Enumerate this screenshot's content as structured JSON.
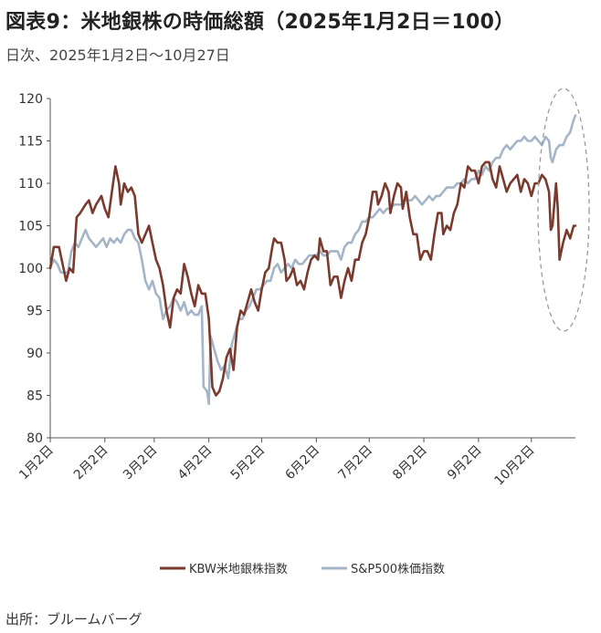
{
  "title": "図表9：米地銀株の時価総額（2025年1月2日＝100）",
  "subtitle": "日次、2025年1月2日～10月27日",
  "source": "出所：ブルームバーグ",
  "chart_data": {
    "type": "line",
    "ylim": [
      80,
      120
    ],
    "yticks": [
      80,
      85,
      90,
      95,
      100,
      105,
      110,
      115,
      120
    ],
    "xlim": [
      0,
      298
    ],
    "xticks": [
      {
        "label": "1月2日",
        "x": 0
      },
      {
        "label": "2月2日",
        "x": 31
      },
      {
        "label": "3月2日",
        "x": 59
      },
      {
        "label": "4月2日",
        "x": 90
      },
      {
        "label": "5月2日",
        "x": 120
      },
      {
        "label": "6月2日",
        "x": 151
      },
      {
        "label": "7月2日",
        "x": 181
      },
      {
        "label": "8月2日",
        "x": 212
      },
      {
        "label": "9月2日",
        "x": 243
      },
      {
        "label": "10月2日",
        "x": 273
      }
    ],
    "annotation": "dashed-ellipse-highlight",
    "legend_position": "bottom",
    "series": [
      {
        "name": "KBW米地銀株指数",
        "color": "#7B3A2E",
        "points": [
          [
            0,
            100
          ],
          [
            2,
            102.5
          ],
          [
            5,
            102.5
          ],
          [
            7,
            100.5
          ],
          [
            9,
            98.5
          ],
          [
            11,
            100
          ],
          [
            13,
            99.5
          ],
          [
            15,
            106
          ],
          [
            17,
            106.5
          ],
          [
            20,
            107.5
          ],
          [
            22,
            108
          ],
          [
            24,
            106.5
          ],
          [
            26,
            107.5
          ],
          [
            29,
            108.5
          ],
          [
            31,
            107
          ],
          [
            33,
            106
          ],
          [
            35,
            109
          ],
          [
            37,
            112
          ],
          [
            39,
            110
          ],
          [
            40,
            107.5
          ],
          [
            42,
            110
          ],
          [
            44,
            109
          ],
          [
            46,
            109.5
          ],
          [
            48,
            108.5
          ],
          [
            50,
            104
          ],
          [
            52,
            103
          ],
          [
            54,
            104
          ],
          [
            56,
            105
          ],
          [
            58,
            103
          ],
          [
            60,
            101
          ],
          [
            62,
            100
          ],
          [
            64,
            98
          ],
          [
            66,
            95
          ],
          [
            68,
            93
          ],
          [
            70,
            96.5
          ],
          [
            72,
            97.5
          ],
          [
            74,
            97
          ],
          [
            76,
            100.5
          ],
          [
            78,
            99
          ],
          [
            80,
            97
          ],
          [
            82,
            95.5
          ],
          [
            84,
            98
          ],
          [
            86,
            97
          ],
          [
            88,
            97
          ],
          [
            90,
            94
          ],
          [
            92,
            86
          ],
          [
            94,
            85
          ],
          [
            96,
            85.5
          ],
          [
            98,
            87
          ],
          [
            100,
            89.5
          ],
          [
            102,
            90.5
          ],
          [
            104,
            88
          ],
          [
            106,
            93
          ],
          [
            108,
            95
          ],
          [
            110,
            94.5
          ],
          [
            112,
            96
          ],
          [
            114,
            97.5
          ],
          [
            116,
            96
          ],
          [
            118,
            95
          ],
          [
            120,
            97.5
          ],
          [
            122,
            99.5
          ],
          [
            124,
            100
          ],
          [
            126,
            102.5
          ],
          [
            127,
            103.5
          ],
          [
            129,
            103
          ],
          [
            131,
            103
          ],
          [
            133,
            101
          ],
          [
            134,
            98.5
          ],
          [
            136,
            99
          ],
          [
            138,
            100
          ],
          [
            140,
            98
          ],
          [
            142,
            98.5
          ],
          [
            144,
            97.5
          ],
          [
            146,
            99.5
          ],
          [
            148,
            101
          ],
          [
            150,
            101.5
          ],
          [
            152,
            101
          ],
          [
            153,
            103.5
          ],
          [
            155,
            102
          ],
          [
            157,
            102
          ],
          [
            159,
            98
          ],
          [
            161,
            99
          ],
          [
            163,
            99
          ],
          [
            165,
            96.5
          ],
          [
            167,
            98.5
          ],
          [
            169,
            100
          ],
          [
            171,
            98.5
          ],
          [
            173,
            101
          ],
          [
            175,
            101
          ],
          [
            177,
            103
          ],
          [
            179,
            104
          ],
          [
            181,
            106
          ],
          [
            183,
            109
          ],
          [
            185,
            109
          ],
          [
            186,
            107.5
          ],
          [
            188,
            108.5
          ],
          [
            190,
            110
          ],
          [
            192,
            109
          ],
          [
            193,
            106.5
          ],
          [
            195,
            108.5
          ],
          [
            197,
            110
          ],
          [
            199,
            109.5
          ],
          [
            200,
            107
          ],
          [
            202,
            109
          ],
          [
            204,
            106
          ],
          [
            206,
            104
          ],
          [
            208,
            104
          ],
          [
            210,
            101
          ],
          [
            212,
            102
          ],
          [
            214,
            102
          ],
          [
            216,
            101
          ],
          [
            218,
            104
          ],
          [
            220,
            106.5
          ],
          [
            222,
            106.5
          ],
          [
            223,
            104
          ],
          [
            225,
            105
          ],
          [
            227,
            104.5
          ],
          [
            229,
            106.5
          ],
          [
            231,
            107.5
          ],
          [
            233,
            110
          ],
          [
            235,
            109.5
          ],
          [
            237,
            112
          ],
          [
            239,
            111.5
          ],
          [
            241,
            111.5
          ],
          [
            243,
            110
          ],
          [
            245,
            112
          ],
          [
            247,
            112.5
          ],
          [
            249,
            112.5
          ],
          [
            251,
            110.5
          ],
          [
            253,
            109.5
          ],
          [
            255,
            112
          ],
          [
            257,
            110.5
          ],
          [
            259,
            109
          ],
          [
            261,
            110
          ],
          [
            263,
            110.5
          ],
          [
            265,
            111
          ],
          [
            267,
            109
          ],
          [
            269,
            110.5
          ],
          [
            271,
            110
          ],
          [
            273,
            108.5
          ],
          [
            275,
            110
          ],
          [
            277,
            110
          ],
          [
            279,
            111
          ],
          [
            281,
            110.5
          ],
          [
            283,
            109
          ],
          [
            284,
            104.5
          ],
          [
            285,
            105
          ],
          [
            287,
            110
          ],
          [
            288,
            107
          ],
          [
            289,
            101
          ],
          [
            291,
            103
          ],
          [
            293,
            104.5
          ],
          [
            295,
            103.5
          ],
          [
            297,
            105
          ],
          [
            298,
            105
          ]
        ]
      },
      {
        "name": "S&P500株価指数",
        "color": "#A4B5C8",
        "points": [
          [
            0,
            100
          ],
          [
            2,
            101
          ],
          [
            4,
            100.5
          ],
          [
            6,
            99.5
          ],
          [
            8,
            99.5
          ],
          [
            10,
            99.5
          ],
          [
            12,
            102
          ],
          [
            14,
            103
          ],
          [
            16,
            102.5
          ],
          [
            18,
            103.5
          ],
          [
            20,
            104.5
          ],
          [
            22,
            103.5
          ],
          [
            24,
            103
          ],
          [
            26,
            102.5
          ],
          [
            28,
            103
          ],
          [
            30,
            103.5
          ],
          [
            32,
            102.5
          ],
          [
            34,
            103.5
          ],
          [
            36,
            103
          ],
          [
            38,
            103.5
          ],
          [
            40,
            103
          ],
          [
            42,
            104
          ],
          [
            44,
            104.5
          ],
          [
            46,
            104.5
          ],
          [
            48,
            103.5
          ],
          [
            50,
            103
          ],
          [
            52,
            101
          ],
          [
            54,
            98.5
          ],
          [
            56,
            97.5
          ],
          [
            58,
            98.5
          ],
          [
            60,
            97
          ],
          [
            62,
            96.5
          ],
          [
            64,
            94
          ],
          [
            66,
            95
          ],
          [
            68,
            95.5
          ],
          [
            70,
            96.5
          ],
          [
            72,
            96
          ],
          [
            74,
            95
          ],
          [
            76,
            96
          ],
          [
            78,
            94.5
          ],
          [
            80,
            95
          ],
          [
            82,
            94.5
          ],
          [
            84,
            94.5
          ],
          [
            86,
            95.5
          ],
          [
            87,
            86
          ],
          [
            89,
            85.5
          ],
          [
            90,
            84
          ],
          [
            91,
            92
          ],
          [
            93,
            90.5
          ],
          [
            95,
            89
          ],
          [
            97,
            88
          ],
          [
            99,
            88.5
          ],
          [
            101,
            87
          ],
          [
            103,
            91
          ],
          [
            105,
            92.5
          ],
          [
            107,
            94
          ],
          [
            109,
            94
          ],
          [
            111,
            95
          ],
          [
            113,
            95.5
          ],
          [
            115,
            96.5
          ],
          [
            117,
            97.5
          ],
          [
            119,
            97.5
          ],
          [
            121,
            98
          ],
          [
            123,
            98.5
          ],
          [
            125,
            98.5
          ],
          [
            127,
            100
          ],
          [
            129,
            100.5
          ],
          [
            131,
            99.5
          ],
          [
            133,
            100
          ],
          [
            135,
            100.5
          ],
          [
            137,
            100
          ],
          [
            139,
            101
          ],
          [
            141,
            100.5
          ],
          [
            143,
            100.5
          ],
          [
            145,
            101
          ],
          [
            147,
            101.5
          ],
          [
            149,
            101.5
          ],
          [
            151,
            101.5
          ],
          [
            153,
            102
          ],
          [
            155,
            101.5
          ],
          [
            157,
            101.5
          ],
          [
            159,
            102
          ],
          [
            161,
            102
          ],
          [
            163,
            102
          ],
          [
            165,
            101
          ],
          [
            167,
            102.5
          ],
          [
            169,
            103
          ],
          [
            171,
            103
          ],
          [
            173,
            104
          ],
          [
            175,
            104.5
          ],
          [
            177,
            105.5
          ],
          [
            179,
            105.5
          ],
          [
            181,
            106
          ],
          [
            183,
            106
          ],
          [
            185,
            106.5
          ],
          [
            187,
            107
          ],
          [
            189,
            106.5
          ],
          [
            191,
            107
          ],
          [
            193,
            107
          ],
          [
            195,
            107.5
          ],
          [
            197,
            107.5
          ],
          [
            199,
            107.5
          ],
          [
            201,
            108
          ],
          [
            203,
            108
          ],
          [
            205,
            108
          ],
          [
            207,
            108.5
          ],
          [
            209,
            108
          ],
          [
            211,
            107.5
          ],
          [
            213,
            108
          ],
          [
            215,
            108.5
          ],
          [
            217,
            108
          ],
          [
            219,
            108.5
          ],
          [
            221,
            108.5
          ],
          [
            223,
            109
          ],
          [
            225,
            109.5
          ],
          [
            227,
            109.5
          ],
          [
            229,
            109.5
          ],
          [
            231,
            110
          ],
          [
            233,
            110
          ],
          [
            235,
            110.5
          ],
          [
            237,
            110
          ],
          [
            239,
            110.5
          ],
          [
            241,
            110.5
          ],
          [
            243,
            111.5
          ],
          [
            245,
            111
          ],
          [
            247,
            112
          ],
          [
            249,
            111.5
          ],
          [
            251,
            112.5
          ],
          [
            253,
            113
          ],
          [
            255,
            113
          ],
          [
            257,
            114
          ],
          [
            259,
            114.5
          ],
          [
            261,
            114
          ],
          [
            263,
            114.5
          ],
          [
            265,
            115
          ],
          [
            267,
            115
          ],
          [
            269,
            115.5
          ],
          [
            271,
            115
          ],
          [
            273,
            115
          ],
          [
            275,
            115.5
          ],
          [
            277,
            115
          ],
          [
            279,
            114.5
          ],
          [
            281,
            115.5
          ],
          [
            283,
            115
          ],
          [
            284,
            113
          ],
          [
            285,
            112.5
          ],
          [
            287,
            114
          ],
          [
            289,
            114.5
          ],
          [
            291,
            114.5
          ],
          [
            293,
            115.5
          ],
          [
            295,
            116
          ],
          [
            297,
            117.5
          ],
          [
            298,
            118
          ]
        ]
      }
    ]
  }
}
